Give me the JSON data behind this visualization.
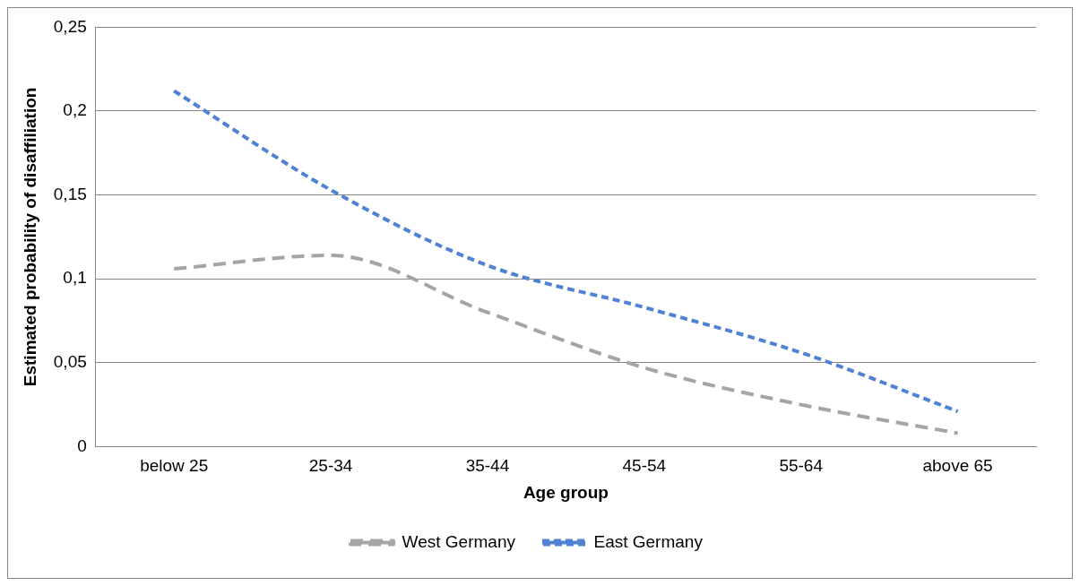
{
  "chart_data": {
    "type": "line",
    "xlabel": "Age group",
    "ylabel": "Estimated probability of disaffiliation",
    "categories": [
      "below 25",
      "25-34",
      "35-44",
      "45-54",
      "55-64",
      "above 65"
    ],
    "series": [
      {
        "name": "West Germany",
        "color": "#a5a5a5",
        "values": [
          0.106,
          0.114,
          0.08,
          0.047,
          0.025,
          0.008
        ]
      },
      {
        "name": "East Germany",
        "color": "#4f81d5",
        "values": [
          0.212,
          0.153,
          0.108,
          0.083,
          0.056,
          0.021
        ]
      }
    ],
    "ylim": [
      0,
      0.25
    ],
    "yticks": [
      0,
      {
        "value": 0.05,
        "label": "0,05"
      },
      {
        "value": 0.1,
        "label": "0,1"
      },
      {
        "value": 0.15,
        "label": "0,15"
      },
      {
        "value": 0.2,
        "label": "0,2"
      },
      {
        "value": 0.25,
        "label": "0,25"
      }
    ],
    "grid": "y",
    "legend": "bottom",
    "marker": "none",
    "line_style": "dashed"
  }
}
